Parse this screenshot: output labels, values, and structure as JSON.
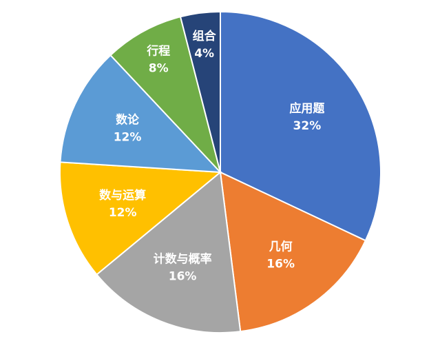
{
  "chart_data": {
    "type": "pie",
    "categories": [
      "应用题",
      "几何",
      "计数与概率",
      "数与运算",
      "数论",
      "行程",
      "组合"
    ],
    "values": [
      32,
      16,
      16,
      12,
      12,
      8,
      4
    ],
    "value_labels": [
      "32%",
      "16%",
      "16%",
      "12%",
      "12%",
      "8%",
      "4%"
    ],
    "colors": [
      "#4472c4",
      "#ed7d31",
      "#a5a5a5",
      "#ffc000",
      "#5b9bd5",
      "#70ad47",
      "#264478"
    ]
  }
}
